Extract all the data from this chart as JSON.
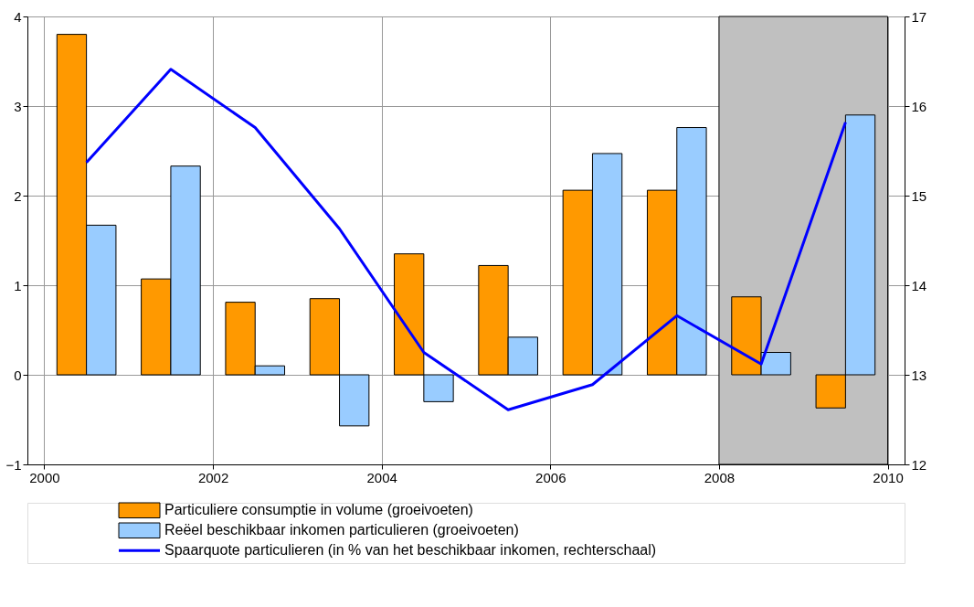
{
  "chart_data": {
    "type": "bar",
    "x": [
      2000.5,
      2001.5,
      2002.5,
      2003.5,
      2004.5,
      2005.5,
      2006.5,
      2007.5,
      2008.5,
      2009.5
    ],
    "series": [
      {
        "name": "Particuliere consumptie in volume (groeivoeten)",
        "color": "#ff9900",
        "values": [
          3.8,
          1.07,
          0.81,
          0.85,
          1.35,
          1.22,
          2.06,
          2.06,
          0.87,
          -0.37
        ]
      },
      {
        "name": "Reëel beschikbaar inkomen particulieren (groeivoeten)",
        "color": "#99ccff",
        "values": [
          1.67,
          2.33,
          0.1,
          -0.57,
          -0.3,
          0.42,
          2.47,
          2.76,
          0.25,
          2.9
        ]
      },
      {
        "name": "Spaarquote particulieren (in % van het beschikbaar inkomen, rechterschaal)",
        "color": "#0000ff",
        "type": "line",
        "axis": "y2",
        "values": [
          15.37,
          16.41,
          15.76,
          14.63,
          13.25,
          12.61,
          12.89,
          13.66,
          13.12,
          15.82
        ]
      }
    ],
    "xlim": [
      1999.8,
      2010.2
    ],
    "xticks": [
      2000,
      2002,
      2004,
      2006,
      2008,
      2010
    ],
    "ylim": [
      -1,
      4
    ],
    "yticks": [
      -1,
      0,
      1,
      2,
      3,
      4
    ],
    "y2lim": [
      12,
      17
    ],
    "y2ticks": [
      12,
      13,
      14,
      15,
      16,
      17
    ],
    "bands": [
      {
        "axis": "x",
        "from": 2008,
        "to": 2010,
        "color": "#c0c0c0"
      }
    ],
    "grid": true,
    "legend": "bottom"
  }
}
